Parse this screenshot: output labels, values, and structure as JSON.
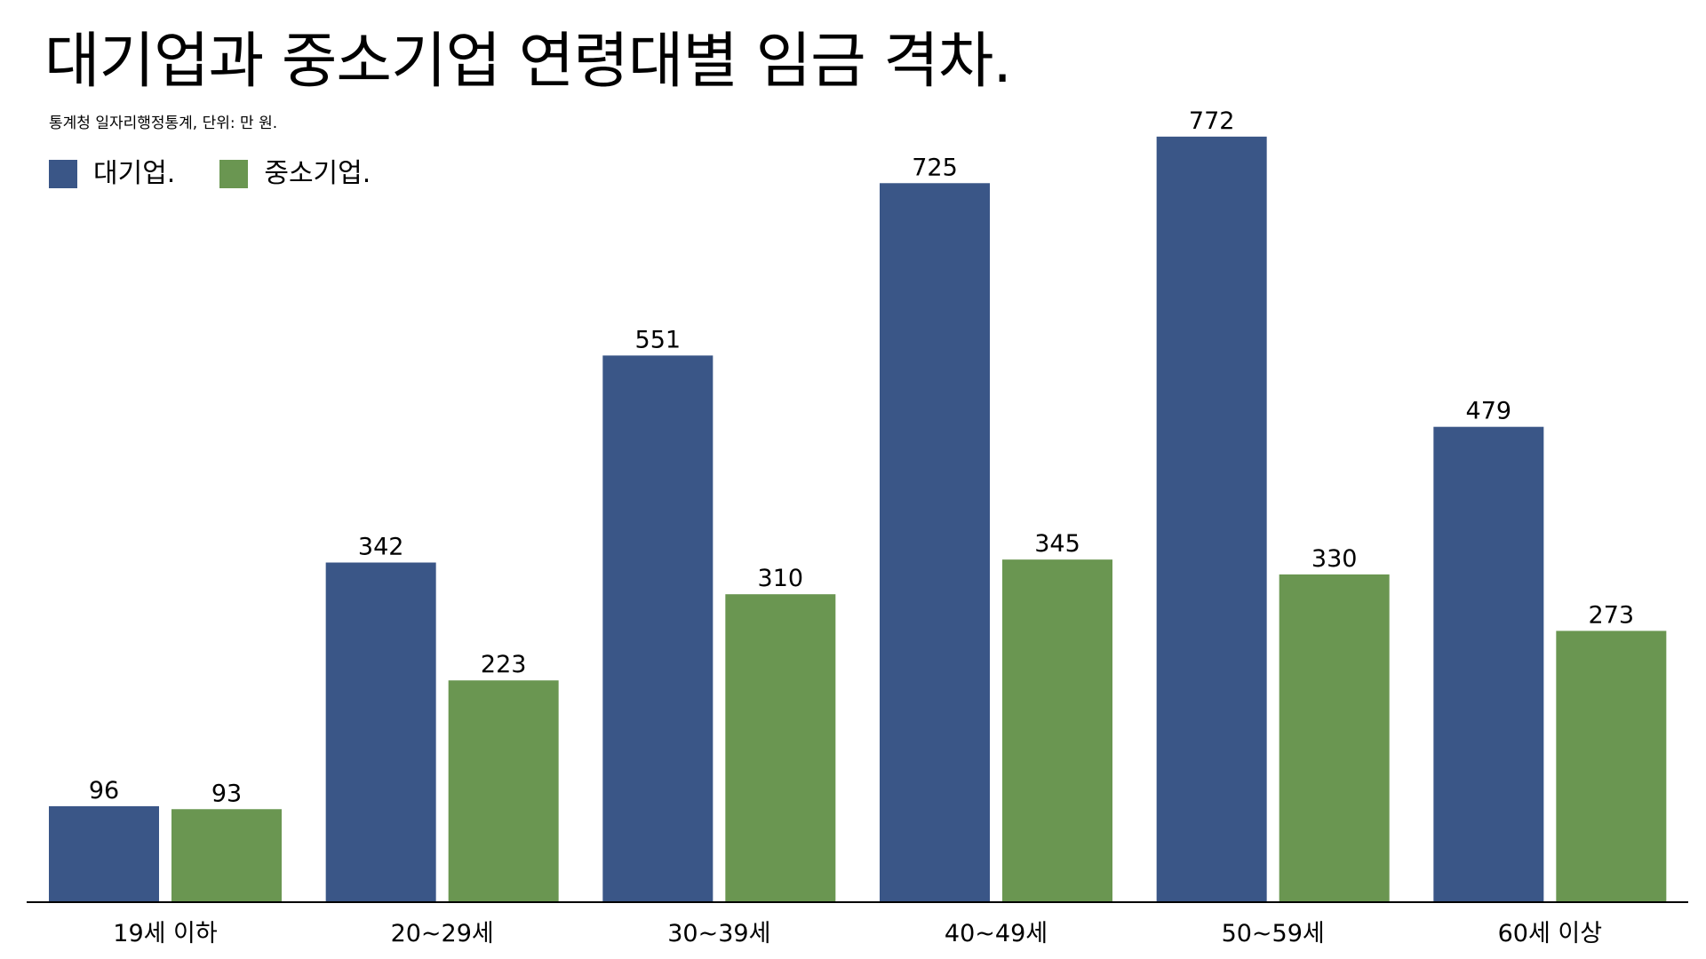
{
  "chart_data": {
    "type": "bar",
    "title": "대기업과 중소기업 연령대별 임금 격차.",
    "subtitle": "통계청 일자리행정통계, 단위: 만 원.",
    "categories": [
      "19세 이하",
      "20~29세",
      "30~39세",
      "40~49세",
      "50~59세",
      "60세 이상"
    ],
    "series": [
      {
        "name": "대기업.",
        "color": "#3a5687",
        "values": [
          96,
          342,
          551,
          725,
          772,
          479
        ]
      },
      {
        "name": "중소기업.",
        "color": "#6a9651",
        "values": [
          93,
          223,
          310,
          345,
          330,
          273
        ]
      }
    ],
    "xlabel": "",
    "ylabel": "",
    "ylim": [
      0,
      840
    ],
    "grid": false,
    "legend_position": "top-left",
    "data_labels": true
  }
}
